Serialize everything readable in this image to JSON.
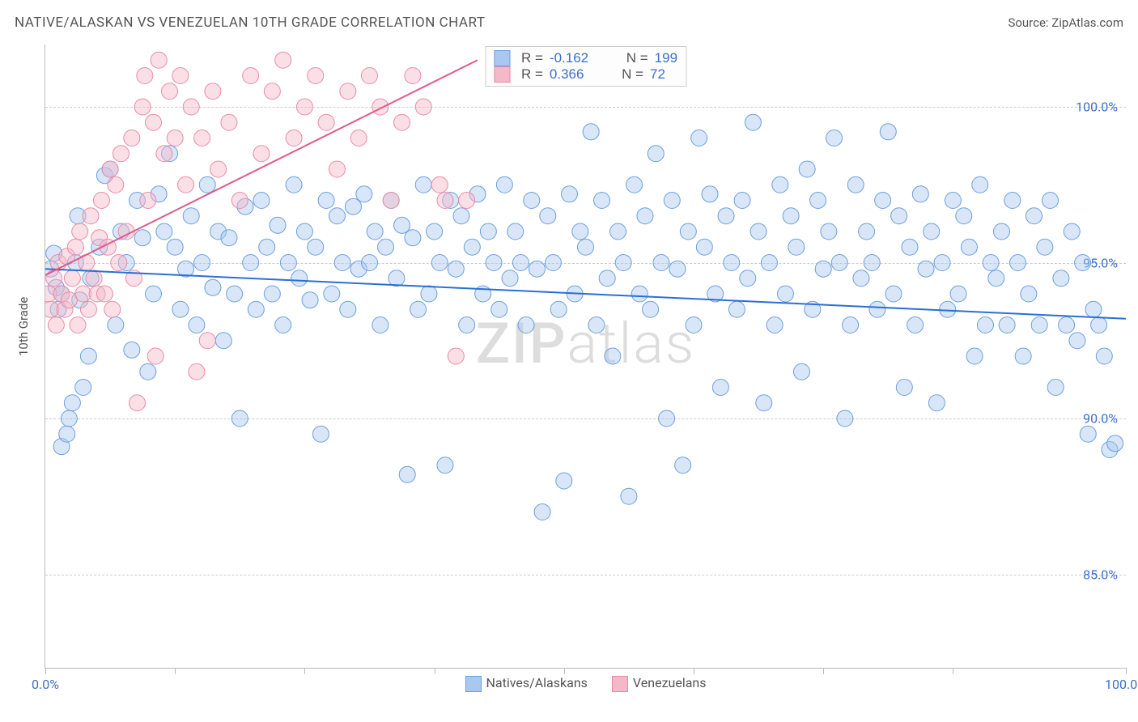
{
  "title": "NATIVE/ALASKAN VS VENEZUELAN 10TH GRADE CORRELATION CHART",
  "source_prefix": "Source: ",
  "source_name": "ZipAtlas.com",
  "ylabel": "10th Grade",
  "watermark_bold": "ZIP",
  "watermark_light": "atlas",
  "chart": {
    "type": "scatter",
    "xlim": [
      0,
      100
    ],
    "ylim": [
      82,
      102
    ],
    "x_ticks": [
      0,
      12,
      24,
      36,
      48,
      60,
      72,
      84,
      100
    ],
    "x_tick_labels": {
      "0": "0.0%",
      "100": "100.0%"
    },
    "y_gridlines": [
      85,
      90,
      95,
      100
    ],
    "y_tick_labels": {
      "85": "85.0%",
      "90": "90.0%",
      "95": "95.0%",
      "100": "100.0%"
    },
    "background_color": "#ffffff",
    "grid_color": "#cccccc",
    "axis_color": "#bbbbbb",
    "tick_label_color": "#3b6fc9",
    "marker_radius": 10,
    "marker_opacity": 0.45,
    "series": [
      {
        "name": "Natives/Alaskans",
        "fill_color": "#a8c8f0",
        "stroke_color": "#6b9fde",
        "trend_line_color": "#2a6fd6",
        "trend_line_width": 2,
        "trend": {
          "x1": 0,
          "y1": 94.8,
          "x2": 100,
          "y2": 93.2
        },
        "R_label": "R = ",
        "R": "-0.162",
        "N_label": "N = ",
        "N": "199",
        "points": [
          [
            0.5,
            94.8
          ],
          [
            0.8,
            95.3
          ],
          [
            1.0,
            94.2
          ],
          [
            1.2,
            93.5
          ],
          [
            1.5,
            94.0
          ],
          [
            1.5,
            89.1
          ],
          [
            2.0,
            89.5
          ],
          [
            2.2,
            90.0
          ],
          [
            2.5,
            90.5
          ],
          [
            2.8,
            95.0
          ],
          [
            3.0,
            96.5
          ],
          [
            3.2,
            93.8
          ],
          [
            3.5,
            91.0
          ],
          [
            4.0,
            92.0
          ],
          [
            4.2,
            94.5
          ],
          [
            5.0,
            95.5
          ],
          [
            5.5,
            97.8
          ],
          [
            6.0,
            98.0
          ],
          [
            6.5,
            93.0
          ],
          [
            7.0,
            96.0
          ],
          [
            7.5,
            95.0
          ],
          [
            8.0,
            92.2
          ],
          [
            8.5,
            97.0
          ],
          [
            9.0,
            95.8
          ],
          [
            9.5,
            91.5
          ],
          [
            10.0,
            94.0
          ],
          [
            10.5,
            97.2
          ],
          [
            11.0,
            96.0
          ],
          [
            11.5,
            98.5
          ],
          [
            12.0,
            95.5
          ],
          [
            12.5,
            93.5
          ],
          [
            13.0,
            94.8
          ],
          [
            13.5,
            96.5
          ],
          [
            14.0,
            93.0
          ],
          [
            14.5,
            95.0
          ],
          [
            15.0,
            97.5
          ],
          [
            15.5,
            94.2
          ],
          [
            16.0,
            96.0
          ],
          [
            16.5,
            92.5
          ],
          [
            17.0,
            95.8
          ],
          [
            17.5,
            94.0
          ],
          [
            18.0,
            90.0
          ],
          [
            18.5,
            96.8
          ],
          [
            19.0,
            95.0
          ],
          [
            19.5,
            93.5
          ],
          [
            20.0,
            97.0
          ],
          [
            20.5,
            95.5
          ],
          [
            21.0,
            94.0
          ],
          [
            21.5,
            96.2
          ],
          [
            22.0,
            93.0
          ],
          [
            22.5,
            95.0
          ],
          [
            23.0,
            97.5
          ],
          [
            23.5,
            94.5
          ],
          [
            24.0,
            96.0
          ],
          [
            24.5,
            93.8
          ],
          [
            25.0,
            95.5
          ],
          [
            25.5,
            89.5
          ],
          [
            26.0,
            97.0
          ],
          [
            26.5,
            94.0
          ],
          [
            27.0,
            96.5
          ],
          [
            27.5,
            95.0
          ],
          [
            28.0,
            93.5
          ],
          [
            28.5,
            96.8
          ],
          [
            29.0,
            94.8
          ],
          [
            29.5,
            97.2
          ],
          [
            30.0,
            95.0
          ],
          [
            30.5,
            96.0
          ],
          [
            31.0,
            93.0
          ],
          [
            31.5,
            95.5
          ],
          [
            32.0,
            97.0
          ],
          [
            32.5,
            94.5
          ],
          [
            33.0,
            96.2
          ],
          [
            33.5,
            88.2
          ],
          [
            34.0,
            95.8
          ],
          [
            34.5,
            93.5
          ],
          [
            35.0,
            97.5
          ],
          [
            35.5,
            94.0
          ],
          [
            36.0,
            96.0
          ],
          [
            36.5,
            95.0
          ],
          [
            37.0,
            88.5
          ],
          [
            37.5,
            97.0
          ],
          [
            38.0,
            94.8
          ],
          [
            38.5,
            96.5
          ],
          [
            39.0,
            93.0
          ],
          [
            39.5,
            95.5
          ],
          [
            40.0,
            97.2
          ],
          [
            40.5,
            94.0
          ],
          [
            41.0,
            96.0
          ],
          [
            41.5,
            95.0
          ],
          [
            42.0,
            93.5
          ],
          [
            42.5,
            97.5
          ],
          [
            43.0,
            94.5
          ],
          [
            43.5,
            96.0
          ],
          [
            44.0,
            95.0
          ],
          [
            44.5,
            93.0
          ],
          [
            45.0,
            97.0
          ],
          [
            45.5,
            94.8
          ],
          [
            46.0,
            87.0
          ],
          [
            46.5,
            96.5
          ],
          [
            47.0,
            95.0
          ],
          [
            47.5,
            93.5
          ],
          [
            48.0,
            88.0
          ],
          [
            48.5,
            97.2
          ],
          [
            49.0,
            94.0
          ],
          [
            49.5,
            96.0
          ],
          [
            50.0,
            95.5
          ],
          [
            50.5,
            99.2
          ],
          [
            51.0,
            93.0
          ],
          [
            51.5,
            97.0
          ],
          [
            52.0,
            94.5
          ],
          [
            52.5,
            92.0
          ],
          [
            53.0,
            96.0
          ],
          [
            53.5,
            95.0
          ],
          [
            54.0,
            87.5
          ],
          [
            54.5,
            97.5
          ],
          [
            55.0,
            94.0
          ],
          [
            55.5,
            96.5
          ],
          [
            56.0,
            93.5
          ],
          [
            56.5,
            98.5
          ],
          [
            57.0,
            95.0
          ],
          [
            57.5,
            90.0
          ],
          [
            58.0,
            97.0
          ],
          [
            58.5,
            94.8
          ],
          [
            59.0,
            88.5
          ],
          [
            59.5,
            96.0
          ],
          [
            60.0,
            93.0
          ],
          [
            60.5,
            99.0
          ],
          [
            61.0,
            95.5
          ],
          [
            61.5,
            97.2
          ],
          [
            62.0,
            94.0
          ],
          [
            62.5,
            91.0
          ],
          [
            63.0,
            96.5
          ],
          [
            63.5,
            95.0
          ],
          [
            64.0,
            93.5
          ],
          [
            64.5,
            97.0
          ],
          [
            65.0,
            94.5
          ],
          [
            65.5,
            99.5
          ],
          [
            66.0,
            96.0
          ],
          [
            66.5,
            90.5
          ],
          [
            67.0,
            95.0
          ],
          [
            67.5,
            93.0
          ],
          [
            68.0,
            97.5
          ],
          [
            68.5,
            94.0
          ],
          [
            69.0,
            96.5
          ],
          [
            69.5,
            95.5
          ],
          [
            70.0,
            91.5
          ],
          [
            70.5,
            98.0
          ],
          [
            71.0,
            93.5
          ],
          [
            71.5,
            97.0
          ],
          [
            72.0,
            94.8
          ],
          [
            72.5,
            96.0
          ],
          [
            73.0,
            99.0
          ],
          [
            73.5,
            95.0
          ],
          [
            74.0,
            90.0
          ],
          [
            74.5,
            93.0
          ],
          [
            75.0,
            97.5
          ],
          [
            75.5,
            94.5
          ],
          [
            76.0,
            96.0
          ],
          [
            76.5,
            95.0
          ],
          [
            77.0,
            93.5
          ],
          [
            77.5,
            97.0
          ],
          [
            78.0,
            99.2
          ],
          [
            78.5,
            94.0
          ],
          [
            79.0,
            96.5
          ],
          [
            79.5,
            91.0
          ],
          [
            80.0,
            95.5
          ],
          [
            80.5,
            93.0
          ],
          [
            81.0,
            97.2
          ],
          [
            81.5,
            94.8
          ],
          [
            82.0,
            96.0
          ],
          [
            82.5,
            90.5
          ],
          [
            83.0,
            95.0
          ],
          [
            83.5,
            93.5
          ],
          [
            84.0,
            97.0
          ],
          [
            84.5,
            94.0
          ],
          [
            85.0,
            96.5
          ],
          [
            85.5,
            95.5
          ],
          [
            86.0,
            92.0
          ],
          [
            86.5,
            97.5
          ],
          [
            87.0,
            93.0
          ],
          [
            87.5,
            95.0
          ],
          [
            88.0,
            94.5
          ],
          [
            88.5,
            96.0
          ],
          [
            89.0,
            93.0
          ],
          [
            89.5,
            97.0
          ],
          [
            90.0,
            95.0
          ],
          [
            90.5,
            92.0
          ],
          [
            91.0,
            94.0
          ],
          [
            91.5,
            96.5
          ],
          [
            92.0,
            93.0
          ],
          [
            92.5,
            95.5
          ],
          [
            93.0,
            97.0
          ],
          [
            93.5,
            91.0
          ],
          [
            94.0,
            94.5
          ],
          [
            94.5,
            93.0
          ],
          [
            95.0,
            96.0
          ],
          [
            95.5,
            92.5
          ],
          [
            96.0,
            95.0
          ],
          [
            96.5,
            89.5
          ],
          [
            97.0,
            93.5
          ],
          [
            97.5,
            93.0
          ],
          [
            98.0,
            92.0
          ],
          [
            98.5,
            89.0
          ],
          [
            99.0,
            89.2
          ]
        ]
      },
      {
        "name": "Venezuelans",
        "fill_color": "#f4b8c8",
        "stroke_color": "#e88ba8",
        "trend_line_color": "#e05a8a",
        "trend_line_width": 2,
        "trend": {
          "x1": 0,
          "y1": 94.6,
          "x2": 40,
          "y2": 101.5
        },
        "R_label": "R = ",
        "R": " 0.366",
        "N_label": "N = ",
        "N": " 72",
        "points": [
          [
            0.3,
            94.0
          ],
          [
            0.5,
            93.5
          ],
          [
            0.8,
            94.5
          ],
          [
            1.0,
            93.0
          ],
          [
            1.2,
            95.0
          ],
          [
            1.5,
            94.0
          ],
          [
            1.8,
            93.5
          ],
          [
            2.0,
            95.2
          ],
          [
            2.2,
            93.8
          ],
          [
            2.5,
            94.5
          ],
          [
            2.8,
            95.5
          ],
          [
            3.0,
            93.0
          ],
          [
            3.2,
            96.0
          ],
          [
            3.5,
            94.0
          ],
          [
            3.8,
            95.0
          ],
          [
            4.0,
            93.5
          ],
          [
            4.2,
            96.5
          ],
          [
            4.5,
            94.5
          ],
          [
            4.8,
            94.0
          ],
          [
            5.0,
            95.8
          ],
          [
            5.2,
            97.0
          ],
          [
            5.5,
            94.0
          ],
          [
            5.8,
            95.5
          ],
          [
            6.0,
            98.0
          ],
          [
            6.2,
            93.5
          ],
          [
            6.5,
            97.5
          ],
          [
            6.8,
            95.0
          ],
          [
            7.0,
            98.5
          ],
          [
            7.5,
            96.0
          ],
          [
            8.0,
            99.0
          ],
          [
            8.2,
            94.5
          ],
          [
            8.5,
            90.5
          ],
          [
            9.0,
            100.0
          ],
          [
            9.2,
            101.0
          ],
          [
            9.5,
            97.0
          ],
          [
            10.0,
            99.5
          ],
          [
            10.2,
            92.0
          ],
          [
            10.5,
            101.5
          ],
          [
            11.0,
            98.5
          ],
          [
            11.5,
            100.5
          ],
          [
            12.0,
            99.0
          ],
          [
            12.5,
            101.0
          ],
          [
            13.0,
            97.5
          ],
          [
            13.5,
            100.0
          ],
          [
            14.0,
            91.5
          ],
          [
            14.5,
            99.0
          ],
          [
            15.0,
            92.5
          ],
          [
            15.5,
            100.5
          ],
          [
            16.0,
            98.0
          ],
          [
            17.0,
            99.5
          ],
          [
            18.0,
            97.0
          ],
          [
            19.0,
            101.0
          ],
          [
            20.0,
            98.5
          ],
          [
            21.0,
            100.5
          ],
          [
            22.0,
            101.5
          ],
          [
            23.0,
            99.0
          ],
          [
            24.0,
            100.0
          ],
          [
            25.0,
            101.0
          ],
          [
            26.0,
            99.5
          ],
          [
            27.0,
            98.0
          ],
          [
            28.0,
            100.5
          ],
          [
            29.0,
            99.0
          ],
          [
            30.0,
            101.0
          ],
          [
            31.0,
            100.0
          ],
          [
            32.0,
            97.0
          ],
          [
            33.0,
            99.5
          ],
          [
            34.0,
            101.0
          ],
          [
            35.0,
            100.0
          ],
          [
            36.5,
            97.5
          ],
          [
            37.0,
            97.0
          ],
          [
            38.0,
            92.0
          ],
          [
            39.0,
            97.0
          ]
        ]
      }
    ],
    "legend_bottom": [
      {
        "label": "Natives/Alaskans",
        "fill": "#a8c8f0",
        "stroke": "#6b9fde"
      },
      {
        "label": "Venezuelans",
        "fill": "#f4b8c8",
        "stroke": "#e88ba8"
      }
    ]
  }
}
